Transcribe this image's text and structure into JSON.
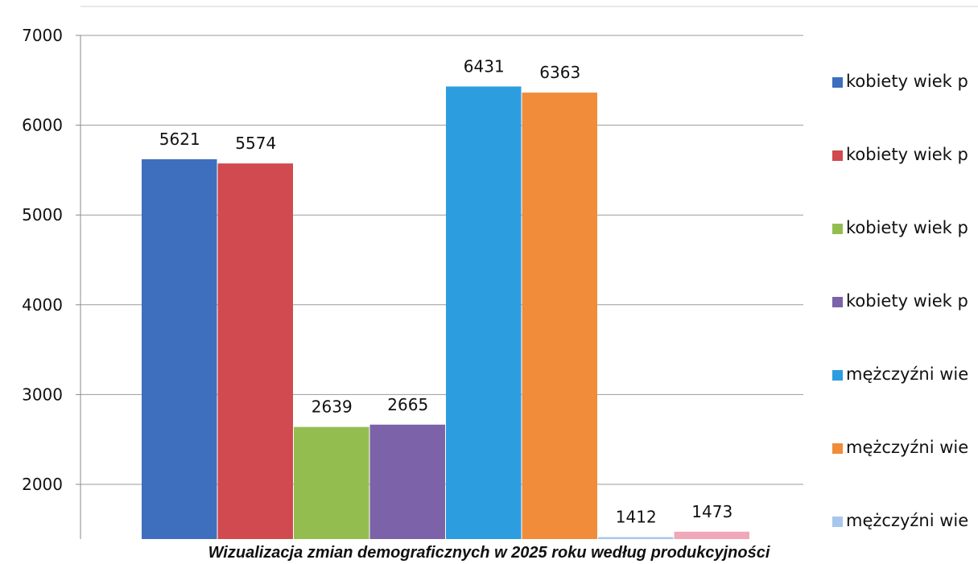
{
  "caption": "Wizualizacja zmian demograficznych w 2025 roku według produkcyjności",
  "chart_data": {
    "type": "bar",
    "ylim": [
      1400,
      7000
    ],
    "yticks": [
      2000,
      3000,
      4000,
      5000,
      6000,
      7000
    ],
    "grid": true,
    "legend_position": "right",
    "series": [
      {
        "name": "kobiety wiek p",
        "value": 5621,
        "color": "#3d6fbe"
      },
      {
        "name": "kobiety wiek p",
        "value": 5574,
        "color": "#d04a4f"
      },
      {
        "name": "kobiety wiek p",
        "value": 2639,
        "color": "#93be4f"
      },
      {
        "name": "kobiety wiek p",
        "value": 2665,
        "color": "#7c62a8"
      },
      {
        "name": "mężczyźni wie",
        "value": 6431,
        "color": "#2c9ee0"
      },
      {
        "name": "mężczyźni wie",
        "value": 6363,
        "color": "#f08c3a"
      },
      {
        "name": "mężczyźni wie",
        "value": 1412,
        "color": "#a8c6ee"
      },
      {
        "name": "",
        "value": 1473,
        "color": "#f0a8b8"
      }
    ]
  }
}
